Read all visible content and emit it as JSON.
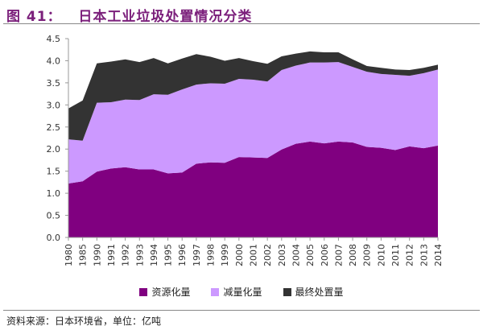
{
  "title": "图 41：   日本工业垃圾处置情况分类",
  "source": "资料来源：日本环境省，单位：亿吨",
  "chart_data": {
    "type": "area",
    "stacked": true,
    "title": "",
    "xlabel": "",
    "ylabel": "",
    "ylim": [
      0,
      4.5
    ],
    "yticks": [
      "0.0",
      "0.5",
      "1.0",
      "1.5",
      "2.0",
      "2.5",
      "3.0",
      "3.5",
      "4.0",
      "4.5"
    ],
    "grid": false,
    "legend_position": "bottom",
    "categories": [
      "1980",
      "1985",
      "1990",
      "1991",
      "1992",
      "1993",
      "1994",
      "1995",
      "1996",
      "1997",
      "1998",
      "1999",
      "2000",
      "2001",
      "2002",
      "2003",
      "2004",
      "2005",
      "2006",
      "2007",
      "2008",
      "2009",
      "2010",
      "2011",
      "2012",
      "2013",
      "2014"
    ],
    "series": [
      {
        "name": "资源化量",
        "color": "#800080",
        "values": [
          1.22,
          1.27,
          1.49,
          1.56,
          1.59,
          1.54,
          1.54,
          1.45,
          1.47,
          1.67,
          1.7,
          1.69,
          1.82,
          1.81,
          1.8,
          1.99,
          2.12,
          2.17,
          2.13,
          2.17,
          2.15,
          2.05,
          2.03,
          1.98,
          2.06,
          2.02,
          2.08
        ]
      },
      {
        "name": "减量化量",
        "color": "#cc99ff",
        "values": [
          1.0,
          0.92,
          1.56,
          1.5,
          1.53,
          1.57,
          1.7,
          1.78,
          1.88,
          1.79,
          1.79,
          1.79,
          1.77,
          1.76,
          1.73,
          1.8,
          1.77,
          1.79,
          1.83,
          1.8,
          1.71,
          1.7,
          1.67,
          1.7,
          1.6,
          1.7,
          1.72
        ]
      },
      {
        "name": "最终处置量",
        "color": "#333333",
        "values": [
          0.7,
          0.91,
          0.89,
          0.92,
          0.91,
          0.86,
          0.82,
          0.71,
          0.7,
          0.69,
          0.6,
          0.52,
          0.47,
          0.42,
          0.4,
          0.31,
          0.27,
          0.25,
          0.23,
          0.22,
          0.17,
          0.13,
          0.14,
          0.12,
          0.13,
          0.12,
          0.11
        ]
      }
    ]
  }
}
